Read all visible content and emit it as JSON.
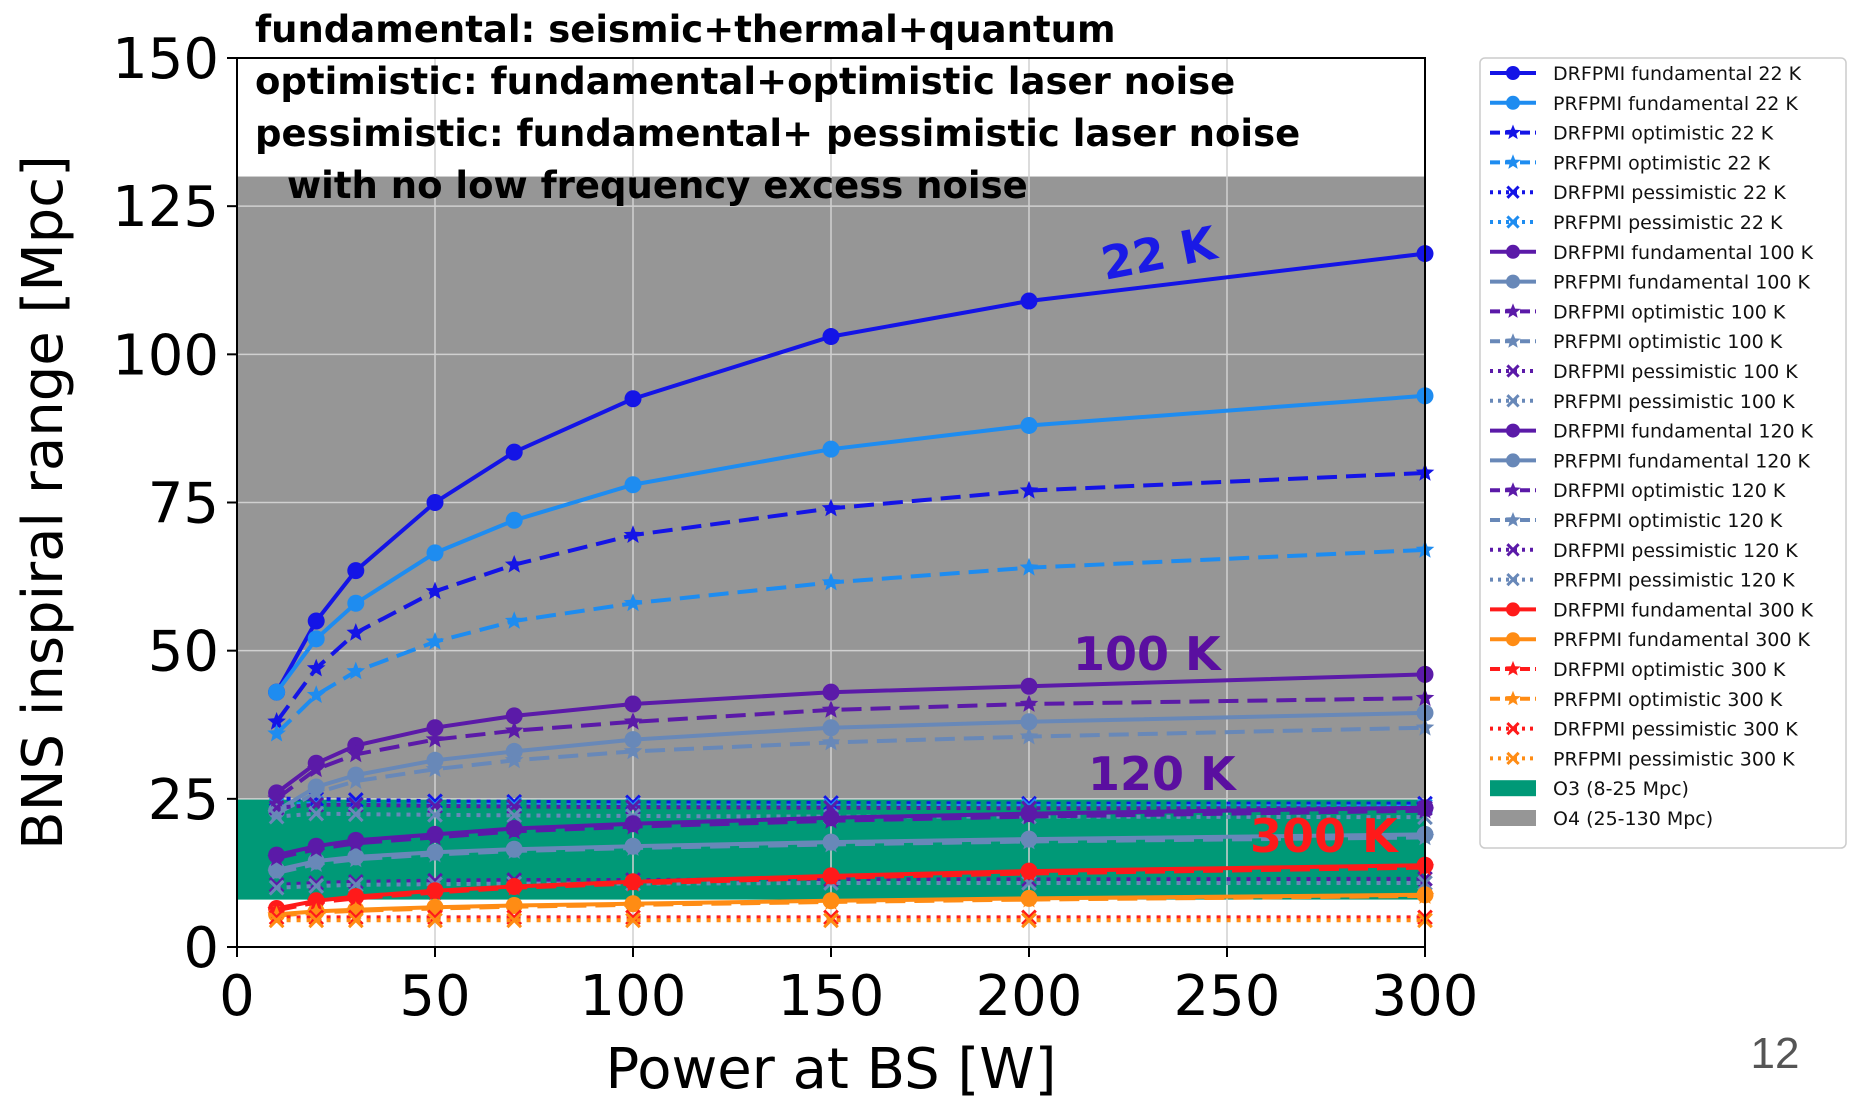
{
  "page_number": "12",
  "chart_data": {
    "type": "line",
    "xlabel": "Power at BS [W]",
    "ylabel": "BNS inspiral range [Mpc]",
    "xlim": [
      0,
      300
    ],
    "ylim": [
      0,
      150
    ],
    "xticks": [
      "0",
      "50",
      "100",
      "150",
      "200",
      "250",
      "300"
    ],
    "yticks": [
      "0",
      "25",
      "50",
      "75",
      "100",
      "125",
      "150"
    ],
    "grid": true,
    "legend_position": "outside-right",
    "annotations": [
      "fundamental: seismic+thermal+quantum",
      "optimistic: fundamental+optimistic laser noise",
      "pessimistic: fundamental+ pessimistic laser noise",
      "with no low frequency excess noise"
    ],
    "temperature_labels": [
      {
        "text": "22 K",
        "color": "#1a1ae6"
      },
      {
        "text": "100 K",
        "color": "#5a0fa0"
      },
      {
        "text": "120 K",
        "color": "#5a0fa0"
      },
      {
        "text": "300 K",
        "color": "#ff1a1a"
      }
    ],
    "bands": [
      {
        "name": "O3 (8-25 Mpc)",
        "from": 8,
        "to": 25,
        "color": "#009977"
      },
      {
        "name": "O4 (25-130 Mpc)",
        "from": 25,
        "to": 130,
        "color": "#969696"
      }
    ],
    "x": [
      10,
      20,
      30,
      50,
      70,
      100,
      150,
      200,
      300
    ],
    "series": [
      {
        "name": "DRFPMI fundamental 22 K",
        "color": "#1414e6",
        "style": "solid",
        "marker": "o",
        "values": [
          43,
          55,
          63.5,
          75,
          83.5,
          92.5,
          103,
          109,
          117
        ]
      },
      {
        "name": "PRFPMI fundamental 22 K",
        "color": "#1e8cf0",
        "style": "solid",
        "marker": "o",
        "values": [
          43,
          52,
          58,
          66.5,
          72,
          78,
          84,
          88,
          93
        ]
      },
      {
        "name": "DRFPMI optimistic 22 K",
        "color": "#1414e6",
        "style": "dashed",
        "marker": "*",
        "values": [
          38,
          47,
          53,
          60,
          64.5,
          69.5,
          74,
          77,
          80
        ]
      },
      {
        "name": "PRFPMI optimistic 22 K",
        "color": "#1e8cf0",
        "style": "dashed",
        "marker": "*",
        "values": [
          36,
          42.5,
          46.5,
          51.5,
          55,
          58,
          61.5,
          64,
          67
        ]
      },
      {
        "name": "DRFPMI pessimistic 22 K",
        "color": "#1414e6",
        "style": "dotted",
        "marker": "x",
        "values": [
          25,
          25,
          24.8,
          24.6,
          24.5,
          24.4,
          24.3,
          24.2,
          24.2
        ]
      },
      {
        "name": "PRFPMI pessimistic 22 K",
        "color": "#1e8cf0",
        "style": "dotted",
        "marker": "x",
        "values": [
          24,
          24.2,
          24.1,
          24,
          24,
          23.9,
          23.8,
          23.8,
          23.7
        ]
      },
      {
        "name": "DRFPMI fundamental 100 K",
        "color": "#5b1aa8",
        "style": "solid",
        "marker": "o",
        "values": [
          26,
          31,
          34,
          37,
          39,
          41,
          43,
          44,
          46
        ]
      },
      {
        "name": "PRFPMI fundamental 100 K",
        "color": "#6888b8",
        "style": "solid",
        "marker": "o",
        "values": [
          23,
          27,
          29,
          31.5,
          33,
          35,
          37,
          38,
          39.5
        ]
      },
      {
        "name": "DRFPMI optimistic 100 K",
        "color": "#5b1aa8",
        "style": "dashed",
        "marker": "*",
        "values": [
          25,
          30,
          32.5,
          35,
          36.5,
          38,
          40,
          41,
          42
        ]
      },
      {
        "name": "PRFPMI optimistic 100 K",
        "color": "#6888b8",
        "style": "dashed",
        "marker": "*",
        "values": [
          22.5,
          26,
          28,
          30,
          31.5,
          33,
          34.5,
          35.5,
          37
        ]
      },
      {
        "name": "DRFPMI pessimistic 100 K",
        "color": "#5b1aa8",
        "style": "dotted",
        "marker": "x",
        "values": [
          23.5,
          24,
          24,
          23.8,
          23.7,
          23.6,
          23.5,
          23.4,
          23.4
        ]
      },
      {
        "name": "PRFPMI pessimistic 100 K",
        "color": "#6888b8",
        "style": "dotted",
        "marker": "x",
        "values": [
          22,
          22.5,
          22.4,
          22.3,
          22.2,
          22.1,
          22,
          22,
          21.9
        ]
      },
      {
        "name": "DRFPMI fundamental 120 K",
        "color": "#5b1aa8",
        "style": "solid",
        "marker": "o",
        "values": [
          15.5,
          17,
          18,
          19,
          20,
          20.8,
          21.8,
          22.5,
          23.5
        ]
      },
      {
        "name": "PRFPMI fundamental 120 K",
        "color": "#6888b8",
        "style": "solid",
        "marker": "o",
        "values": [
          13,
          14.5,
          15.2,
          16,
          16.5,
          17,
          17.7,
          18.2,
          19
        ]
      },
      {
        "name": "DRFPMI optimistic 120 K",
        "color": "#5b1aa8",
        "style": "dashed",
        "marker": "*",
        "values": [
          15,
          16.5,
          17.5,
          18.5,
          19.5,
          20.3,
          21.3,
          22,
          23
        ]
      },
      {
        "name": "PRFPMI optimistic 120 K",
        "color": "#6888b8",
        "style": "dashed",
        "marker": "*",
        "values": [
          12.5,
          14,
          14.8,
          15.6,
          16.2,
          16.7,
          17.3,
          17.8,
          18.5
        ]
      },
      {
        "name": "DRFPMI pessimistic 120 K",
        "color": "#5b1aa8",
        "style": "dotted",
        "marker": "x",
        "values": [
          10.5,
          10.8,
          11,
          11.2,
          11.3,
          11.3,
          11.4,
          11.4,
          11.5
        ]
      },
      {
        "name": "PRFPMI pessimistic 120 K",
        "color": "#6888b8",
        "style": "dotted",
        "marker": "x",
        "values": [
          10,
          10.3,
          10.5,
          10.6,
          10.7,
          10.7,
          10.8,
          10.8,
          10.8
        ]
      },
      {
        "name": "DRFPMI fundamental 300 K",
        "color": "#ff1a1a",
        "style": "solid",
        "marker": "o",
        "values": [
          6.5,
          7.8,
          8.5,
          9.5,
          10.2,
          11,
          12,
          12.8,
          13.8
        ]
      },
      {
        "name": "PRFPMI fundamental 300 K",
        "color": "#ff8c14",
        "style": "solid",
        "marker": "o",
        "values": [
          5.5,
          6,
          6.3,
          6.7,
          7,
          7.3,
          7.8,
          8.2,
          8.8
        ]
      },
      {
        "name": "DRFPMI optimistic 300 K",
        "color": "#ff1a1a",
        "style": "dashed",
        "marker": "*",
        "values": [
          6.2,
          7.5,
          8.2,
          9.2,
          10,
          10.7,
          11.7,
          12.4,
          13.4
        ]
      },
      {
        "name": "PRFPMI optimistic 300 K",
        "color": "#ff8c14",
        "style": "dashed",
        "marker": "*",
        "values": [
          5.3,
          5.8,
          6.1,
          6.5,
          6.8,
          7.1,
          7.6,
          8,
          8.6
        ]
      },
      {
        "name": "DRFPMI pessimistic 300 K",
        "color": "#ff1a1a",
        "style": "dotted",
        "marker": "x",
        "values": [
          5,
          5,
          5,
          5,
          5,
          5,
          5,
          5,
          5
        ]
      },
      {
        "name": "PRFPMI pessimistic 300 K",
        "color": "#ff8c14",
        "style": "dotted",
        "marker": "x",
        "values": [
          4.5,
          4.5,
          4.5,
          4.5,
          4.5,
          4.5,
          4.5,
          4.5,
          4.5
        ]
      }
    ]
  }
}
